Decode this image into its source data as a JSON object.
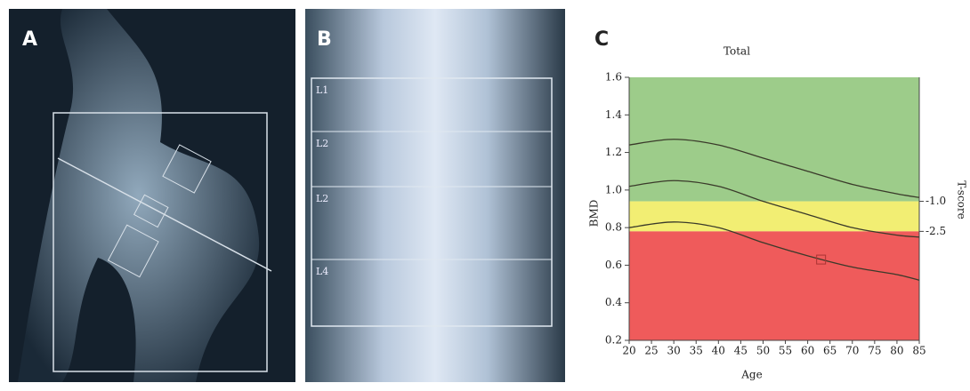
{
  "panels": {
    "a": {
      "label": "A"
    },
    "b": {
      "label": "B",
      "regions": [
        "L1",
        "L2",
        "L2",
        "L4"
      ]
    }
  },
  "chart_data": {
    "type": "line",
    "panel_label": "C",
    "title": "Total",
    "x_label": "Age",
    "y_label": "BMD",
    "y2_label": "T-score",
    "x": [
      20,
      30,
      40,
      50,
      60,
      70,
      80,
      85
    ],
    "series": [
      {
        "color": "#3a3a2a",
        "values": [
          1.24,
          1.27,
          1.24,
          1.17,
          1.1,
          1.03,
          0.98,
          0.96
        ]
      },
      {
        "color": "#3a3a2a",
        "values": [
          1.02,
          1.05,
          1.02,
          0.94,
          0.87,
          0.8,
          0.76,
          0.75
        ]
      },
      {
        "color": "#3a3a2a",
        "values": [
          0.8,
          0.83,
          0.8,
          0.72,
          0.65,
          0.59,
          0.55,
          0.52
        ]
      }
    ],
    "bands": [
      {
        "from": 0.94,
        "to": 1.6,
        "color": "#9dcc8a"
      },
      {
        "from": 0.78,
        "to": 0.94,
        "color": "#f2ee73"
      },
      {
        "from": 0.2,
        "to": 0.78,
        "color": "#ef5b5b"
      }
    ],
    "thresholds": [
      {
        "value": 0.94,
        "label": "-1.0"
      },
      {
        "value": 0.78,
        "label": "-2.5"
      }
    ],
    "patient": {
      "x": 63,
      "y": 0.63
    },
    "xlim": [
      20,
      85
    ],
    "xticks": [
      20,
      25,
      30,
      35,
      40,
      45,
      50,
      55,
      60,
      65,
      70,
      75,
      80,
      85
    ],
    "ylim": [
      0.2,
      1.6
    ],
    "yticks": [
      0.2,
      0.4,
      0.6,
      0.8,
      {
        "value": 1,
        "label": "1.0"
      },
      1.2,
      1.4,
      1.6
    ]
  }
}
